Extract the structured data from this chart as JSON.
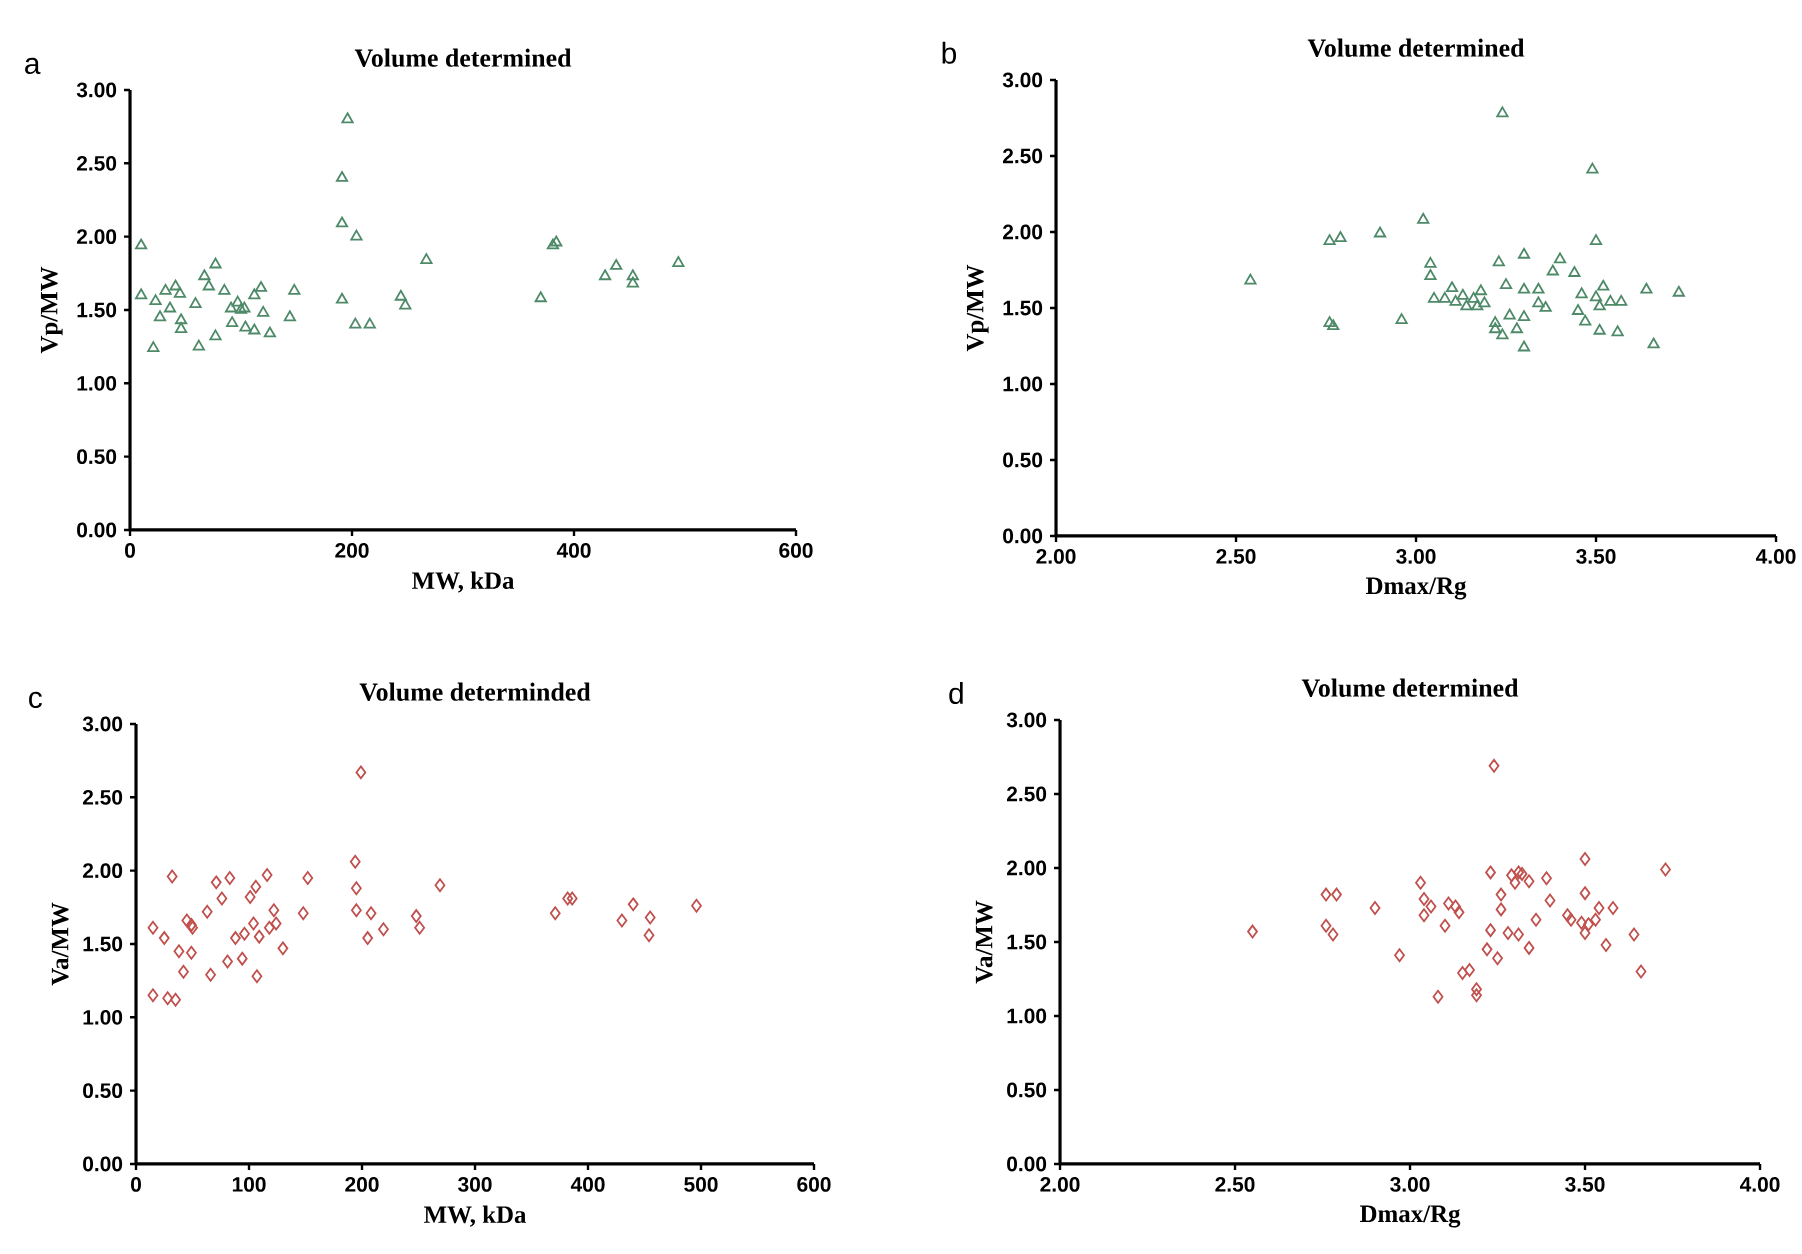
{
  "chart_data": [
    {
      "type": "scatter",
      "title": "Volume determined",
      "xlabel": "MW, kDa",
      "ylabel": "Vp/MW",
      "annotations": [
        "a"
      ],
      "marker": "triangle",
      "grid": false,
      "xlim": [
        0,
        600
      ],
      "xticks": [
        0,
        200,
        400,
        600
      ],
      "ylim": [
        0,
        3
      ],
      "yticks": [
        {
          "value": 0,
          "label": "0.00"
        },
        {
          "value": 0.5,
          "label": "0.50"
        },
        {
          "value": 1,
          "label": "1.00"
        },
        {
          "value": 1.5,
          "label": "1.50"
        },
        {
          "value": 2,
          "label": "2.00"
        },
        {
          "value": 2.5,
          "label": "2.50"
        },
        {
          "value": 3,
          "label": "3.00"
        }
      ],
      "series": [
        {
          "color": "#4e8a68",
          "x": [
            10,
            10,
            21,
            23,
            27,
            32,
            36,
            41,
            45,
            46,
            46,
            59,
            62,
            67,
            71,
            77,
            77,
            85,
            91,
            92,
            97,
            100,
            103,
            104,
            112,
            112,
            118,
            120,
            126,
            144,
            148,
            191,
            191,
            191,
            196,
            203,
            204,
            216,
            244,
            248,
            267,
            370,
            381,
            384,
            428,
            438,
            453,
            453,
            494
          ],
          "values": [
            1.94,
            1.6,
            1.24,
            1.56,
            1.45,
            1.63,
            1.51,
            1.66,
            1.61,
            1.43,
            1.37,
            1.54,
            1.25,
            1.73,
            1.66,
            1.81,
            1.32,
            1.63,
            1.51,
            1.41,
            1.55,
            1.5,
            1.51,
            1.38,
            1.6,
            1.36,
            1.65,
            1.48,
            1.34,
            1.45,
            1.63,
            2.4,
            2.09,
            1.57,
            2.8,
            1.4,
            2.0,
            1.4,
            1.59,
            1.53,
            1.84,
            1.58,
            1.94,
            1.96,
            1.73,
            1.8,
            1.73,
            1.68,
            1.82
          ]
        }
      ]
    },
    {
      "type": "scatter",
      "title": "Volume determined",
      "xlabel": "Dmax/Rg",
      "ylabel": "Vp/MW",
      "annotations": [
        "b"
      ],
      "marker": "triangle",
      "grid": false,
      "xlim": [
        2,
        4
      ],
      "xticks": [
        {
          "value": 2,
          "label": "2.00"
        },
        {
          "value": 2.5,
          "label": "2.50"
        },
        {
          "value": 3,
          "label": "3.00"
        },
        {
          "value": 3.5,
          "label": "3.50"
        },
        {
          "value": 4,
          "label": "4.00"
        }
      ],
      "ylim": [
        0,
        3
      ],
      "yticks": [
        {
          "value": 0,
          "label": "0.00"
        },
        {
          "value": 0.5,
          "label": "0.50"
        },
        {
          "value": 1,
          "label": "1.00"
        },
        {
          "value": 1.5,
          "label": "1.50"
        },
        {
          "value": 2,
          "label": "2.00"
        },
        {
          "value": 2.5,
          "label": "2.50"
        },
        {
          "value": 3,
          "label": "3.00"
        }
      ],
      "series": [
        {
          "color": "#4e8a68",
          "x": [
            2.54,
            2.76,
            2.79,
            2.76,
            2.77,
            2.9,
            2.96,
            3.02,
            3.04,
            3.04,
            3.05,
            3.08,
            3.1,
            3.11,
            3.13,
            3.14,
            3.16,
            3.17,
            3.18,
            3.19,
            3.22,
            3.22,
            3.23,
            3.24,
            3.24,
            3.25,
            3.26,
            3.28,
            3.3,
            3.3,
            3.3,
            3.3,
            3.34,
            3.34,
            3.36,
            3.38,
            3.4,
            3.44,
            3.45,
            3.46,
            3.47,
            3.49,
            3.5,
            3.5,
            3.51,
            3.51,
            3.52,
            3.54,
            3.56,
            3.57,
            3.64,
            3.66,
            3.73
          ],
          "values": [
            1.68,
            1.94,
            1.96,
            1.4,
            1.38,
            1.99,
            1.42,
            2.08,
            1.79,
            1.71,
            1.56,
            1.56,
            1.63,
            1.54,
            1.58,
            1.51,
            1.56,
            1.51,
            1.61,
            1.53,
            1.36,
            1.4,
            1.8,
            2.78,
            1.32,
            1.65,
            1.45,
            1.36,
            1.62,
            1.85,
            1.24,
            1.44,
            1.62,
            1.53,
            1.5,
            1.74,
            1.82,
            1.73,
            1.48,
            1.59,
            1.41,
            2.41,
            1.94,
            1.57,
            1.51,
            1.35,
            1.64,
            1.54,
            1.34,
            1.54,
            1.62,
            1.26,
            1.6
          ]
        }
      ]
    },
    {
      "type": "scatter",
      "title": "Volume determinded",
      "xlabel": "MW, kDa",
      "ylabel": "Va/MW",
      "annotations": [
        "c"
      ],
      "marker": "diamond",
      "grid": false,
      "xlim": [
        0,
        600
      ],
      "xticks": [
        0,
        100,
        200,
        300,
        400,
        500,
        600
      ],
      "ylim": [
        0,
        3
      ],
      "yticks": [
        {
          "value": 0,
          "label": "0.00"
        },
        {
          "value": 0.5,
          "label": "0.50"
        },
        {
          "value": 1,
          "label": "1.00"
        },
        {
          "value": 1.5,
          "label": "1.50"
        },
        {
          "value": 2,
          "label": "2.00"
        },
        {
          "value": 2.5,
          "label": "2.50"
        },
        {
          "value": 3,
          "label": "3.00"
        }
      ],
      "series": [
        {
          "color": "#c0504d",
          "x": [
            15,
            15,
            25,
            28,
            32,
            35,
            38,
            42,
            45,
            49,
            49,
            50,
            63,
            66,
            71,
            76,
            81,
            83,
            88,
            94,
            96,
            101,
            104,
            106,
            107,
            109,
            116,
            118,
            122,
            124,
            130,
            148,
            152,
            194,
            195,
            195,
            199,
            205,
            208,
            219,
            248,
            251,
            269,
            371,
            382,
            386,
            430,
            440,
            455,
            454,
            496
          ],
          "values": [
            1.61,
            1.15,
            1.54,
            1.13,
            1.96,
            1.12,
            1.45,
            1.31,
            1.66,
            1.63,
            1.44,
            1.61,
            1.72,
            1.29,
            1.92,
            1.81,
            1.38,
            1.95,
            1.54,
            1.4,
            1.57,
            1.82,
            1.64,
            1.89,
            1.28,
            1.55,
            1.97,
            1.61,
            1.73,
            1.64,
            1.47,
            1.71,
            1.95,
            2.06,
            1.88,
            1.73,
            2.67,
            1.54,
            1.71,
            1.6,
            1.69,
            1.61,
            1.9,
            1.71,
            1.81,
            1.81,
            1.66,
            1.77,
            1.68,
            1.56,
            1.76
          ]
        }
      ]
    },
    {
      "type": "scatter",
      "title": "Volume determined",
      "xlabel": "Dmax/Rg",
      "ylabel": "Va/MW",
      "annotations": [
        "d"
      ],
      "marker": "diamond",
      "grid": false,
      "xlim": [
        2,
        4
      ],
      "xticks": [
        {
          "value": 2,
          "label": "2.00"
        },
        {
          "value": 2.5,
          "label": "2.50"
        },
        {
          "value": 3,
          "label": "3.00"
        },
        {
          "value": 3.5,
          "label": "3.50"
        },
        {
          "value": 4,
          "label": "4.00"
        }
      ],
      "ylim": [
        0,
        3
      ],
      "yticks": [
        {
          "value": 0,
          "label": "0.00"
        },
        {
          "value": 0.5,
          "label": "0.50"
        },
        {
          "value": 1,
          "label": "1.00"
        },
        {
          "value": 1.5,
          "label": "1.50"
        },
        {
          "value": 2,
          "label": "2.00"
        },
        {
          "value": 2.5,
          "label": "2.50"
        },
        {
          "value": 3,
          "label": "3.00"
        }
      ],
      "series": [
        {
          "color": "#c0504d",
          "x": [
            2.55,
            2.76,
            2.76,
            2.78,
            2.79,
            2.9,
            2.97,
            3.03,
            3.04,
            3.04,
            3.06,
            3.08,
            3.1,
            3.11,
            3.13,
            3.14,
            3.15,
            3.17,
            3.19,
            3.19,
            3.22,
            3.23,
            3.23,
            3.24,
            3.25,
            3.26,
            3.26,
            3.28,
            3.29,
            3.3,
            3.31,
            3.31,
            3.32,
            3.34,
            3.34,
            3.36,
            3.39,
            3.4,
            3.45,
            3.46,
            3.49,
            3.5,
            3.5,
            3.5,
            3.51,
            3.53,
            3.54,
            3.56,
            3.58,
            3.64,
            3.66,
            3.73
          ],
          "values": [
            1.57,
            1.82,
            1.61,
            1.55,
            1.82,
            1.73,
            1.41,
            1.9,
            1.79,
            1.68,
            1.74,
            1.13,
            1.61,
            1.76,
            1.74,
            1.7,
            1.29,
            1.31,
            1.18,
            1.14,
            1.45,
            1.58,
            1.97,
            2.69,
            1.39,
            1.82,
            1.72,
            1.56,
            1.95,
            1.9,
            1.97,
            1.55,
            1.96,
            1.91,
            1.46,
            1.65,
            1.93,
            1.78,
            1.68,
            1.65,
            1.63,
            2.06,
            1.83,
            1.56,
            1.62,
            1.65,
            1.73,
            1.48,
            1.73,
            1.55,
            1.3,
            1.99
          ]
        }
      ]
    }
  ]
}
